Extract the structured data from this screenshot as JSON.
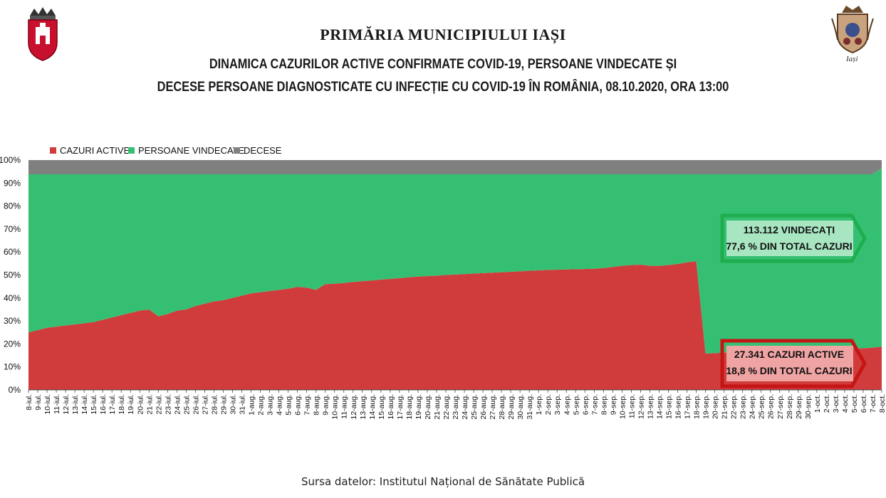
{
  "header": {
    "institution": "PRIMĂRIA MUNICIPIULUI IAȘI",
    "title_line1": "DINAMICA CAZURILOR ACTIVE CONFIRMATE COVID-19, PERSOANE VINDECATE ȘI",
    "title_line2": "DECESE PERSOANE DIAGNOSTICATE CU INFECȚIE CU COVID-19 ÎN ROMÂNIA, 08.10.2020, ORA 13:00"
  },
  "logo_right_text": "Iași",
  "source": "Sursa datelor: Institutul Național de Sănătate Publică",
  "colors": {
    "active": "#d03c3c",
    "recovered": "#35bf72",
    "deaths": "#808080",
    "callout_green_border": "#1fae4f",
    "callout_green_fill": "#a8e6c2",
    "callout_red_border": "#c61515",
    "callout_red_fill": "#f0a3a3"
  },
  "callouts": {
    "recovered": {
      "line1": "113.112 VINDECAȚI",
      "line2": "77,6 % DIN TOTAL CAZURI"
    },
    "active": {
      "line1": "27.341 CAZURI ACTIVE",
      "line2": "18,8 % DIN TOTAL CAZURI"
    }
  },
  "chart_data": {
    "type": "area",
    "stacked": "percent",
    "legend_position": "top-left",
    "grid": false,
    "ylim": [
      0,
      100
    ],
    "yticks": [
      "0%",
      "10%",
      "20%",
      "30%",
      "40%",
      "50%",
      "60%",
      "70%",
      "80%",
      "90%",
      "100%"
    ],
    "categories": [
      "8-iul.",
      "9-iul.",
      "10-iul.",
      "11-iul.",
      "12-iul.",
      "13-iul.",
      "14-iul.",
      "15-iul.",
      "16-iul.",
      "17-iul.",
      "18-iul.",
      "19-iul.",
      "20-iul.",
      "21-iul.",
      "22-iul.",
      "23-iul.",
      "24-iul.",
      "25-iul.",
      "26-iul.",
      "27-iul.",
      "28-iul.",
      "29-iul.",
      "30-iul.",
      "31-iul.",
      "1-aug.",
      "2-aug.",
      "3-aug.",
      "4-aug.",
      "5-aug.",
      "6-aug.",
      "7-aug.",
      "8-aug.",
      "9-aug.",
      "10-aug.",
      "11-aug.",
      "12-aug.",
      "13-aug.",
      "14-aug.",
      "15-aug.",
      "16-aug.",
      "17-aug.",
      "18-aug.",
      "19-aug.",
      "20-aug.",
      "21-aug.",
      "22-aug.",
      "23-aug.",
      "24-aug.",
      "25-aug.",
      "26-aug.",
      "27-aug.",
      "28-aug.",
      "29-aug.",
      "30-aug.",
      "31-aug.",
      "1-sep.",
      "2-sep.",
      "3-sep.",
      "4-sep.",
      "5-sep.",
      "6-sep.",
      "7-sep.",
      "8-sep.",
      "9-sep.",
      "10-sep.",
      "11-sep.",
      "12-sep.",
      "13-sep.",
      "14-sep.",
      "15-sep.",
      "16-sep.",
      "17-sep.",
      "18-sep.",
      "19-sep.",
      "20-sep.",
      "21-sep.",
      "22-sep.",
      "23-sep.",
      "24-sep.",
      "25-sep.",
      "26-sep.",
      "27-sep.",
      "28-sep.",
      "29-sep.",
      "30-sep.",
      "1-oct.",
      "2-oct.",
      "3-oct.",
      "4-oct.",
      "5-oct.",
      "6-oct.",
      "7-oct.",
      "8-oct."
    ],
    "series": [
      {
        "name": "CAZURI ACTIVE",
        "color": "#d03c3c",
        "values": [
          25,
          26,
          27,
          27.5,
          28,
          28.5,
          29,
          29.5,
          30.5,
          31.5,
          32.5,
          33.5,
          34.5,
          35,
          32,
          33,
          34.5,
          35,
          36.5,
          37.5,
          38.5,
          39,
          40,
          41,
          42,
          42.5,
          43,
          43.5,
          44,
          44.8,
          44.5,
          43.5,
          46,
          46.2,
          46.5,
          47,
          47.3,
          47.6,
          48,
          48.3,
          48.6,
          49,
          49.3,
          49.5,
          49.7,
          50,
          50.2,
          50.4,
          50.6,
          50.8,
          51,
          51.2,
          51.4,
          51.6,
          51.8,
          52,
          52.2,
          52.3,
          52.4,
          52.5,
          52.6,
          52.7,
          53,
          53.5,
          54,
          54.3,
          54.5,
          54,
          54,
          54.3,
          54.8,
          55.5,
          56,
          15.8,
          16,
          16.2,
          16.3,
          16.5,
          16.6,
          16.8,
          17,
          17,
          17.1,
          17.2,
          17.3,
          17.4,
          17.5,
          17.6,
          17.7,
          17.9,
          18.1,
          18.4,
          18.8
        ]
      },
      {
        "name": "PERSOANE VINDECATE",
        "color": "#35bf72",
        "values": [
          68.8,
          67.8,
          66.8,
          66.3,
          65.8,
          65.3,
          64.8,
          64.3,
          63.3,
          62.3,
          61.3,
          60.3,
          59.3,
          58.8,
          61.8,
          60.8,
          59.3,
          58.8,
          57.3,
          56.3,
          55.3,
          54.8,
          53.8,
          52.8,
          51.8,
          51.3,
          50.8,
          50.3,
          49.8,
          49,
          49.3,
          50.3,
          47.8,
          47.6,
          47.3,
          46.8,
          46.5,
          46.2,
          45.8,
          45.5,
          45.2,
          44.8,
          44.5,
          44.3,
          44.1,
          43.8,
          43.6,
          43.4,
          43.2,
          43,
          42.8,
          42.6,
          42.4,
          42.2,
          42,
          41.8,
          41.6,
          41.5,
          41.4,
          41.3,
          41.2,
          41.1,
          40.8,
          40.3,
          39.8,
          39.5,
          39.3,
          39.8,
          39.8,
          39.5,
          39,
          38.3,
          37.8,
          78,
          77.8,
          77.6,
          77.5,
          77.3,
          77.2,
          77,
          76.8,
          76.8,
          76.7,
          76.6,
          76.5,
          76.4,
          76.3,
          76.2,
          76.1,
          75.9,
          75.7,
          75.4,
          77.6
        ]
      },
      {
        "name": "DECESE",
        "color": "#808080",
        "values": [
          6.2,
          6.2,
          6.2,
          6.2,
          6.2,
          6.2,
          6.2,
          6.2,
          6.2,
          6.2,
          6.2,
          6.2,
          6.2,
          6.2,
          6.2,
          6.2,
          6.2,
          6.2,
          6.2,
          6.2,
          6.2,
          6.2,
          6.2,
          6.2,
          6.2,
          6.2,
          6.2,
          6.2,
          6.2,
          6.2,
          6.2,
          6.2,
          6.2,
          6.2,
          6.2,
          6.2,
          6.2,
          6.2,
          6.2,
          6.2,
          6.2,
          6.2,
          6.2,
          6.2,
          6.2,
          6.2,
          6.2,
          6.2,
          6.2,
          6.2,
          6.2,
          6.2,
          6.2,
          6.2,
          6.2,
          6.2,
          6.2,
          6.2,
          6.2,
          6.2,
          6.2,
          6.2,
          6.2,
          6.2,
          6.2,
          6.2,
          6.2,
          6.2,
          6.2,
          6.2,
          6.2,
          6.2,
          6.2,
          6.2,
          6.2,
          6.2,
          6.2,
          6.2,
          6.2,
          6.2,
          6.2,
          6.2,
          6.2,
          6.2,
          6.2,
          6.2,
          6.2,
          6.2,
          6.2,
          6.2,
          6.2,
          6.2,
          3.6
        ]
      }
    ]
  }
}
